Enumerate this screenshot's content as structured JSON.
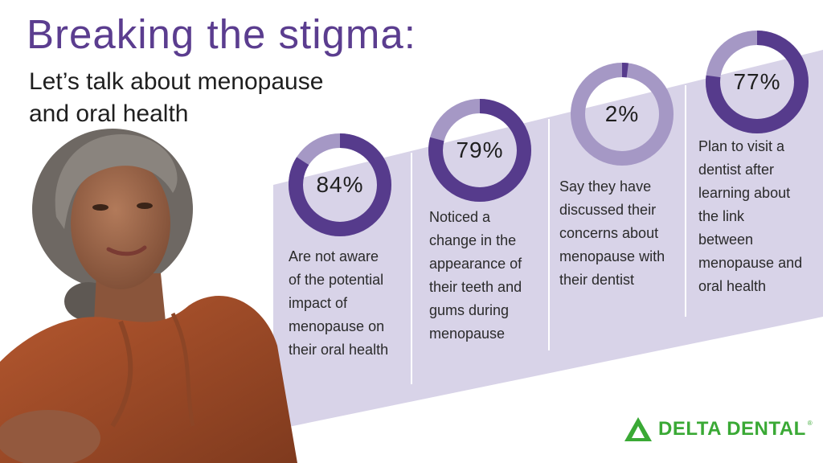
{
  "header": {
    "title": "Breaking the stigma:",
    "subtitle_lines": [
      "Let’s talk about menopause",
      "and oral health"
    ]
  },
  "stats": [
    {
      "percent_label": "84%",
      "value": 84,
      "lines": [
        "Are not aware",
        "of the potential",
        "impact of",
        "menopause on",
        "their oral health"
      ]
    },
    {
      "percent_label": "79%",
      "value": 79,
      "lines": [
        "Noticed a",
        "change in the",
        "appearance of",
        "their teeth and",
        "gums during",
        "menopause"
      ]
    },
    {
      "percent_label": "2%",
      "value": 2,
      "lines": [
        "Say they have",
        "discussed their",
        "concerns about",
        "menopause with",
        "their dentist"
      ]
    },
    {
      "percent_label": "77%",
      "value": 77,
      "lines": [
        "Plan to visit a",
        "dentist after",
        "learning about",
        "the link",
        "between",
        "menopause and",
        "oral health"
      ]
    }
  ],
  "colors": {
    "title": "#5b3d8f",
    "ring_fill": "#563b8c",
    "ring_track": "#a598c5",
    "band": "#d8d3e8",
    "logo": "#3aa935"
  },
  "logo": {
    "text": "DELTA DENTAL",
    "mark": "®"
  },
  "photo": {
    "icon": "woman-portrait-photo"
  }
}
